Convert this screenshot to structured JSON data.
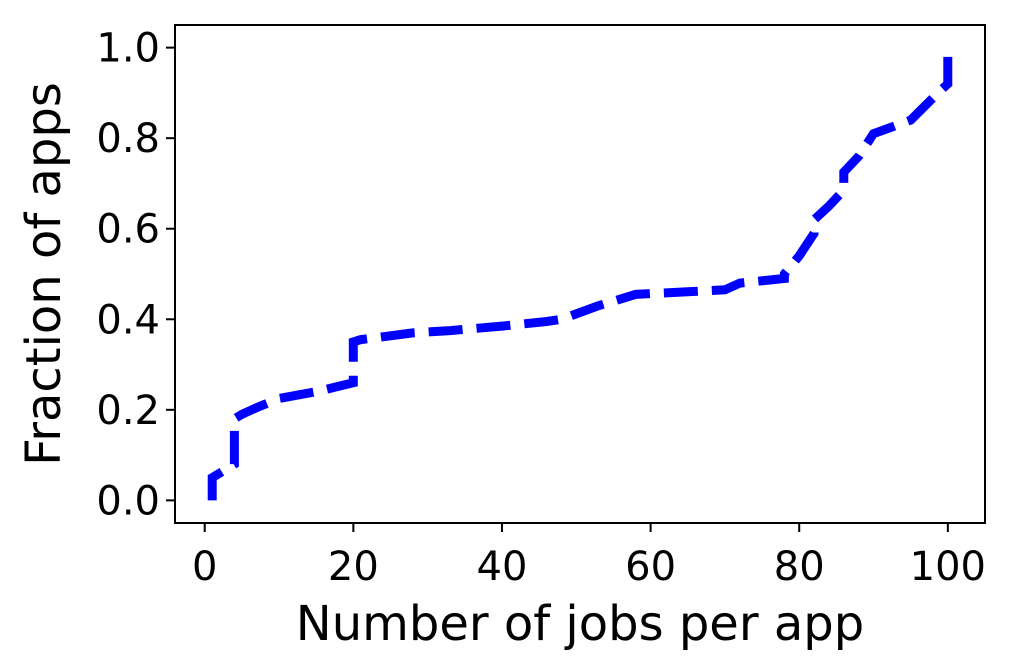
{
  "chart_data": {
    "type": "line",
    "title": "",
    "xlabel": "Number of jobs per app",
    "ylabel": "Fraction of apps",
    "xlim": [
      -4,
      105
    ],
    "ylim": [
      -0.05,
      1.05
    ],
    "xticks": [
      0,
      20,
      40,
      60,
      80,
      100
    ],
    "xtick_labels": [
      "0",
      "20",
      "40",
      "60",
      "80",
      "100"
    ],
    "yticks": [
      0.0,
      0.2,
      0.4,
      0.6,
      0.8,
      1.0
    ],
    "ytick_labels": [
      "0.0",
      "0.2",
      "0.4",
      "0.6",
      "0.8",
      "1.0"
    ],
    "grid": false,
    "legend": "none",
    "series": [
      {
        "color": "#0000ff",
        "line_style": "dashed",
        "x": [
          1,
          1,
          2,
          4,
          4,
          5,
          7,
          10,
          15,
          20,
          20,
          21,
          28,
          33,
          40,
          46,
          48,
          53,
          58,
          64,
          70,
          72,
          78,
          78,
          80,
          82,
          82,
          84,
          86,
          86,
          88,
          90,
          95,
          99,
          100,
          100
        ],
        "y": [
          0.0,
          0.05,
          0.06,
          0.08,
          0.18,
          0.19,
          0.205,
          0.225,
          0.24,
          0.26,
          0.35,
          0.355,
          0.37,
          0.375,
          0.385,
          0.395,
          0.4,
          0.43,
          0.455,
          0.46,
          0.465,
          0.48,
          0.49,
          0.5,
          0.54,
          0.59,
          0.62,
          0.65,
          0.685,
          0.725,
          0.76,
          0.81,
          0.84,
          0.905,
          0.92,
          1.0
        ]
      }
    ]
  }
}
